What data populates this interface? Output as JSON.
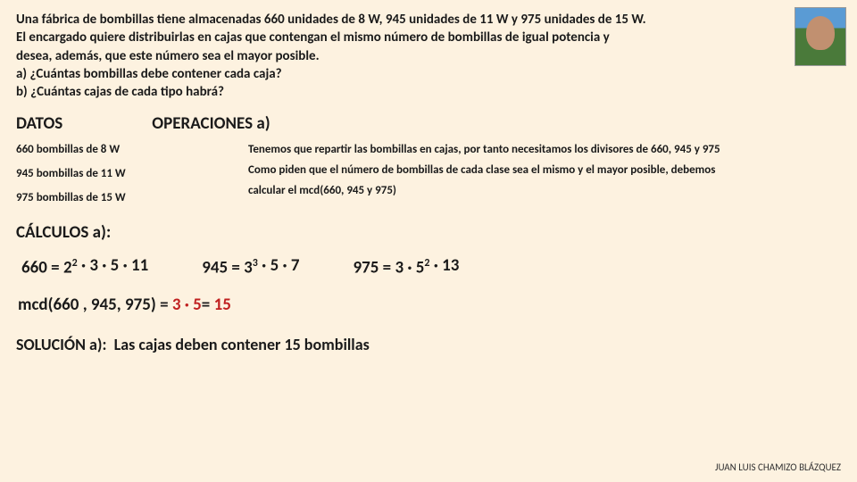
{
  "problem": {
    "p1": "Una fábrica de bombillas tiene almacenadas 660 unidades de 8 W, 945 unidades de 11 W y 975 unidades de 15 W.",
    "p2": "El encargado quiere distribuirlas en cajas que contengan el mismo número de bombillas de igual potencia y",
    "p3": "desea, además, que este número sea el mayor posible.",
    "qa": "a) ¿Cuántas bombillas debe contener cada caja?",
    "qb": "b) ¿Cuántas cajas de cada tipo habrá?"
  },
  "headings": {
    "datos": "DATOS",
    "oper": "OPERACIONES a)",
    "calc": "CÁLCULOS a):",
    "sol": "SOLUCIÓN  a):"
  },
  "datos": {
    "d1": "660 bombillas de 8 W",
    "d2": "945 bombillas de 11 W",
    "d3": "975 bombillas de 15 W"
  },
  "oper": {
    "o1": "Tenemos que repartir las bombillas en cajas, por tanto necesitamos los divisores de 660, 945 y 975",
    "o2a": "Como piden que el número de bombillas de cada clase sea el mismo y el mayor posible, debemos",
    "o2b": "calcular el mcd(660, 945 y 975)"
  },
  "factors": {
    "f660_lhs": "660 = 2",
    "f660_rest": " · 3 · 5 · 11",
    "f660_exp": "2",
    "f945": "945 = 3",
    "f945_exp": "3",
    "f945_rest": " · 5 · 7",
    "f975": "975 = 3 · 5",
    "f975_exp": "2",
    "f975_rest": " · 13"
  },
  "mcd": {
    "lhs": "mcd(660 , 945, 975)  = ",
    "mid": "3 · 5",
    "eq": "=  ",
    "res": "15"
  },
  "solution": "Las cajas deben contener 15 bombillas",
  "footer": "JUAN LUIS CHAMIZO BLÁZQUEZ"
}
